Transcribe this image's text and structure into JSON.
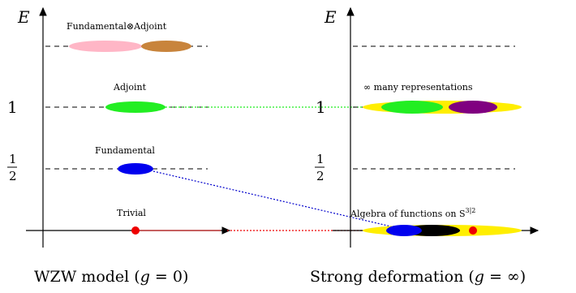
{
  "left_panel": {
    "axis_label": "E",
    "levels": {
      "one": "1",
      "half_num": "1",
      "half_den": "2"
    },
    "labels": {
      "fundamental_adjoint": "Fundamental⊗Adjoint",
      "adjoint": "Adjoint",
      "fundamental": "Fundamental",
      "trivial": "Trivial"
    },
    "caption_prefix": "WZW model (",
    "caption_var": "g",
    "caption_suffix": " = 0)"
  },
  "right_panel": {
    "axis_label": "E",
    "levels": {
      "one": "1",
      "half_num": "1",
      "half_den": "2"
    },
    "labels": {
      "many_reps": "∞ many representations",
      "algebra": "Algebra of functions on S",
      "algebra_sup": "3|2"
    },
    "caption_prefix": "Strong deformation (",
    "caption_var": "g",
    "caption_suffix": " = ∞)"
  },
  "colors": {
    "pink": "#ffb6c6",
    "brown": "#c8843c",
    "green": "#22ee22",
    "blue": "#0000ee",
    "red": "#ee0000",
    "yellow": "#ffee00",
    "purple": "#800080",
    "black": "#000000"
  }
}
